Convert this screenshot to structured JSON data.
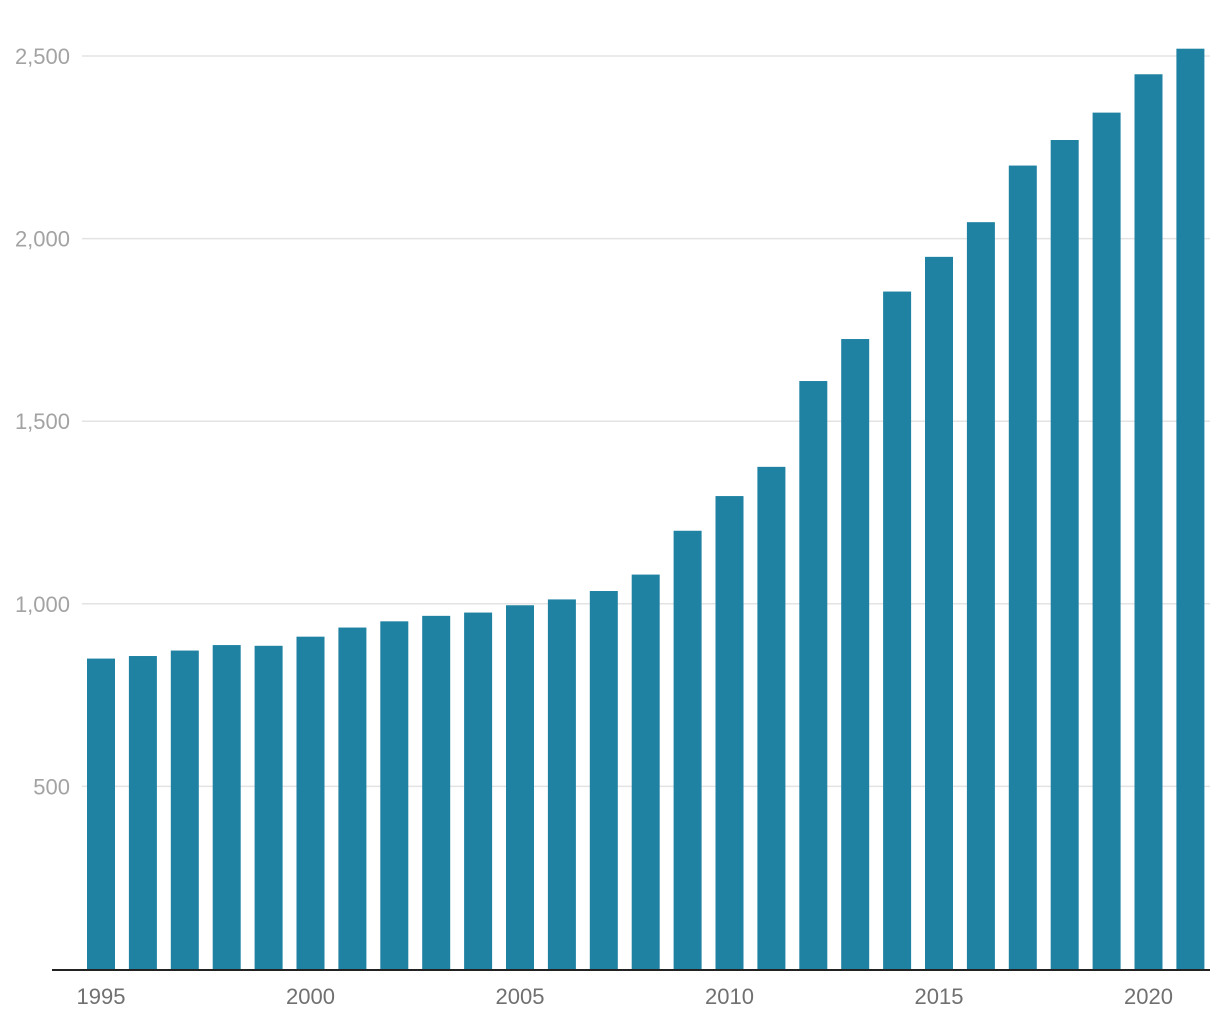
{
  "colors": {
    "bar": "#1f82a3",
    "gridline": "#e3e3e3",
    "baseline": "#222222",
    "y_tick_text": "#a3a3a3",
    "x_tick_text": "#707070"
  },
  "chart_data": {
    "type": "bar",
    "title": "",
    "xlabel": "",
    "ylabel": "",
    "grid": true,
    "legend": "none",
    "ylim": [
      0,
      2500
    ],
    "y_ticks": [
      500,
      1000,
      1500,
      2000,
      2500
    ],
    "y_tick_labels": [
      "500",
      "1,000",
      "1,500",
      "2,000",
      "2,500"
    ],
    "x_tick_labels": [
      "1995",
      "2000",
      "2005",
      "2010",
      "2015",
      "2020"
    ],
    "categories": [
      "1995",
      "1996",
      "1997",
      "1998",
      "1999",
      "2000",
      "2001",
      "2002",
      "2003",
      "2004",
      "2005",
      "2006",
      "2007",
      "2008",
      "2009",
      "2010",
      "2011",
      "2012",
      "2013",
      "2014",
      "2015",
      "2016",
      "2017",
      "2018",
      "2019",
      "2020",
      "2021"
    ],
    "values": [
      850,
      857,
      872,
      887,
      885,
      910,
      935,
      952,
      967,
      976,
      996,
      1012,
      1035,
      1080,
      1200,
      1295,
      1375,
      1610,
      1725,
      1855,
      1950,
      2045,
      2200,
      2270,
      2345,
      2450,
      2520
    ]
  }
}
